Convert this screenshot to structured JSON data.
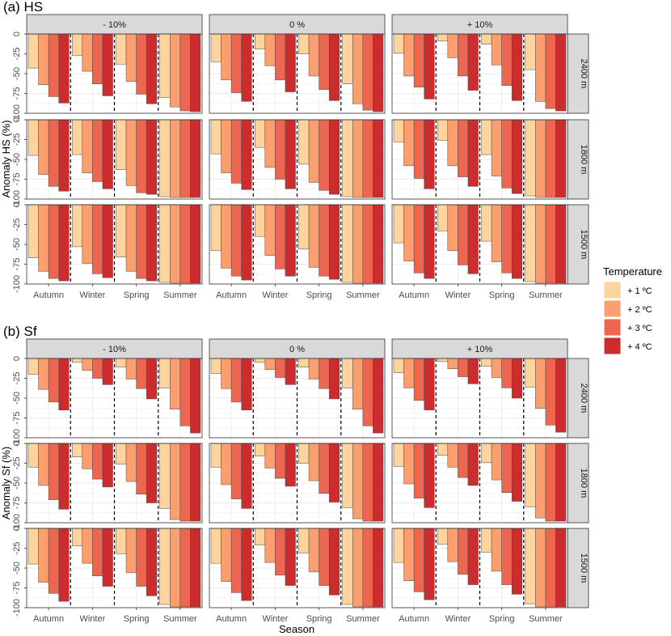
{
  "chart_data": {
    "type": "bar",
    "categories": [
      "Autumn",
      "Winter",
      "Spring",
      "Summer"
    ],
    "series_names": [
      "+ 1 ºC",
      "+ 2 ºC",
      "+ 3 ºC",
      "+ 4 ºC"
    ],
    "series_colors": [
      "#FDD49E",
      "#FC9E6E",
      "#EE6550",
      "#CB2C2E"
    ],
    "col_facets": [
      "- 10%",
      "0 %",
      "+ 10%"
    ],
    "row_facets": [
      "2400 m",
      "1800 m",
      "1500 m"
    ],
    "ylim": [
      -100,
      0
    ],
    "yticks": [
      0,
      -25,
      -50,
      -75,
      -100
    ],
    "ytick_labels": [
      "0",
      "-25",
      "-50",
      "-75",
      "-100"
    ],
    "grid": true,
    "legend": {
      "title": "Temperature",
      "position": "right"
    },
    "xlabel": "Season",
    "panels": [
      {
        "title": "(a) HS",
        "ylabel": "Anomaly HS (%)",
        "values": [
          [
            [
              [
                -43,
                -64,
                -79,
                -87
              ],
              [
                -27,
                -47,
                -63,
                -78
              ],
              [
                -38,
                -60,
                -76,
                -88
              ],
              [
                -80,
                -92,
                -97,
                -98
              ]
            ],
            [
              [
                -35,
                -58,
                -74,
                -85
              ],
              [
                -19,
                -40,
                -58,
                -73
              ],
              [
                -25,
                -53,
                -70,
                -84
              ],
              [
                -63,
                -88,
                -96,
                -98
              ]
            ],
            [
              [
                -24,
                -53,
                -67,
                -82
              ],
              [
                -9,
                -30,
                -53,
                -71
              ],
              [
                -13,
                -39,
                -65,
                -84
              ],
              [
                -45,
                -85,
                -94,
                -97
              ]
            ]
          ],
          [
            [
              [
                -45,
                -69,
                -84,
                -90
              ],
              [
                -44,
                -67,
                -78,
                -87
              ],
              [
                -63,
                -83,
                -92,
                -94
              ],
              [
                -97,
                -98,
                -98,
                -98
              ]
            ],
            [
              [
                -43,
                -67,
                -80,
                -88
              ],
              [
                -35,
                -60,
                -75,
                -87
              ],
              [
                -56,
                -79,
                -89,
                -94
              ],
              [
                -97,
                -98,
                -98,
                -98
              ]
            ],
            [
              [
                -28,
                -58,
                -74,
                -87
              ],
              [
                -26,
                -58,
                -72,
                -84
              ],
              [
                -44,
                -71,
                -86,
                -93
              ],
              [
                -96,
                -98,
                -98,
                -98
              ]
            ]
          ],
          [
            [
              [
                -67,
                -84,
                -93,
                -96
              ],
              [
                -53,
                -74,
                -87,
                -92
              ],
              [
                -66,
                -84,
                -93,
                -96
              ],
              [
                -98,
                -99,
                -99,
                -99
              ]
            ],
            [
              [
                -58,
                -80,
                -90,
                -95
              ],
              [
                -40,
                -64,
                -81,
                -90
              ],
              [
                -56,
                -79,
                -90,
                -94
              ],
              [
                -98,
                -99,
                -99,
                -99
              ]
            ],
            [
              [
                -48,
                -71,
                -86,
                -93
              ],
              [
                -33,
                -58,
                -76,
                -87
              ],
              [
                -46,
                -72,
                -86,
                -93
              ],
              [
                -97,
                -99,
                -99,
                -99
              ]
            ]
          ]
        ]
      },
      {
        "title": "(b) Sf",
        "ylabel": "Anomaly Sf (%)",
        "values": [
          [
            [
              [
                -20,
                -39,
                -55,
                -65
              ],
              [
                -5,
                -15,
                -25,
                -33
              ],
              [
                -11,
                -26,
                -38,
                -51
              ],
              [
                -37,
                -64,
                -85,
                -94
              ]
            ],
            [
              [
                -19,
                -38,
                -55,
                -65
              ],
              [
                -5,
                -14,
                -24,
                -33
              ],
              [
                -11,
                -26,
                -38,
                -51
              ],
              [
                -37,
                -64,
                -85,
                -94
              ]
            ],
            [
              [
                -18,
                -37,
                -53,
                -65
              ],
              [
                -4,
                -13,
                -23,
                -32
              ],
              [
                -10,
                -24,
                -37,
                -50
              ],
              [
                -36,
                -63,
                -84,
                -93
              ]
            ]
          ],
          [
            [
              [
                -30,
                -53,
                -71,
                -83
              ],
              [
                -17,
                -32,
                -45,
                -55
              ],
              [
                -26,
                -48,
                -64,
                -75
              ],
              [
                -82,
                -96,
                -98,
                -98
              ]
            ],
            [
              [
                -30,
                -52,
                -70,
                -82
              ],
              [
                -16,
                -31,
                -44,
                -54
              ],
              [
                -25,
                -47,
                -63,
                -74
              ],
              [
                -81,
                -95,
                -98,
                -98
              ]
            ],
            [
              [
                -29,
                -51,
                -69,
                -81
              ],
              [
                -15,
                -30,
                -43,
                -53
              ],
              [
                -24,
                -46,
                -62,
                -73
              ],
              [
                -80,
                -94,
                -98,
                -98
              ]
            ]
          ],
          [
            [
              [
                -45,
                -68,
                -82,
                -92
              ],
              [
                -22,
                -44,
                -60,
                -73
              ],
              [
                -32,
                -56,
                -73,
                -85
              ],
              [
                -96,
                -99,
                -99,
                -99
              ]
            ],
            [
              [
                -44,
                -67,
                -81,
                -91
              ],
              [
                -21,
                -43,
                -59,
                -72
              ],
              [
                -31,
                -55,
                -72,
                -84
              ],
              [
                -96,
                -99,
                -99,
                -99
              ]
            ],
            [
              [
                -43,
                -66,
                -80,
                -90
              ],
              [
                -20,
                -42,
                -58,
                -71
              ],
              [
                -30,
                -54,
                -71,
                -83
              ],
              [
                -95,
                -99,
                -99,
                -99
              ]
            ]
          ]
        ]
      }
    ]
  }
}
